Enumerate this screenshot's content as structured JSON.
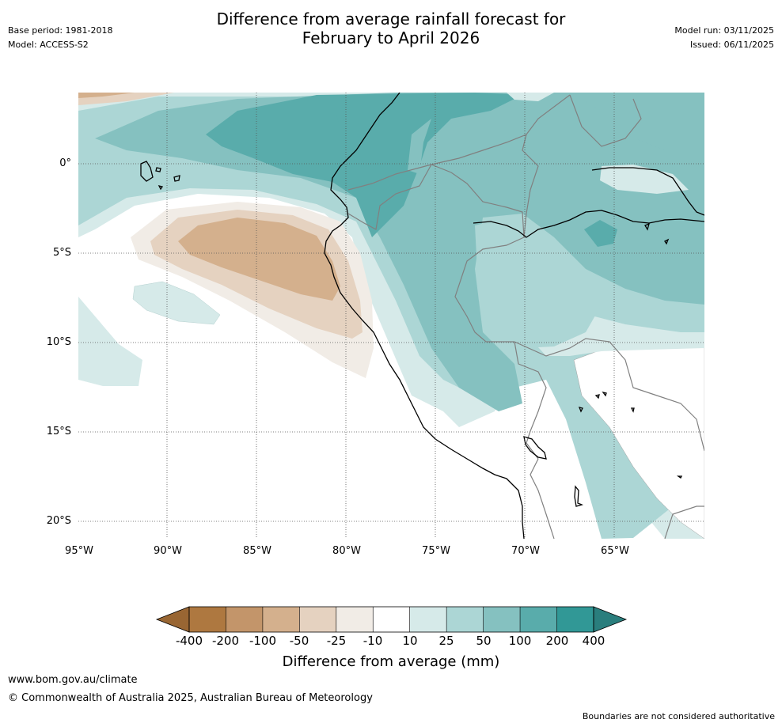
{
  "title_line1": "Difference from average rainfall forecast for",
  "title_line2": "February to April 2026",
  "meta_left": {
    "base_period": "Base period: 1981-2018",
    "model": "Model: ACCESS-S2"
  },
  "meta_right": {
    "model_run": "Model run: 03/11/2025",
    "issued": "Issued: 06/11/2025"
  },
  "map": {
    "lat_labels": [
      "0°",
      "5°S",
      "10°S",
      "15°S",
      "20°S"
    ],
    "lon_labels": [
      "95°W",
      "90°W",
      "85°W",
      "80°W",
      "75°W",
      "70°W",
      "65°W"
    ]
  },
  "colorbar": {
    "ticks": [
      "-400",
      "-200",
      "-100",
      "-50",
      "-25",
      "-10",
      "10",
      "25",
      "50",
      "100",
      "200",
      "400"
    ],
    "label": "Difference from average (mm)",
    "colors": [
      "#996633",
      "#ae7840",
      "#c3956a",
      "#d4b08d",
      "#e5d2c0",
      "#f1ece6",
      "#ffffff",
      "#d6eae9",
      "#acd6d5",
      "#85c1c0",
      "#59acab",
      "#319896",
      "#2a7e7d"
    ]
  },
  "footer": {
    "url": "www.bom.gov.au/climate",
    "copyright": "© Commonwealth of Australia 2025, Australian Bureau of Meteorology",
    "note": "Boundaries are not considered authoritative"
  }
}
